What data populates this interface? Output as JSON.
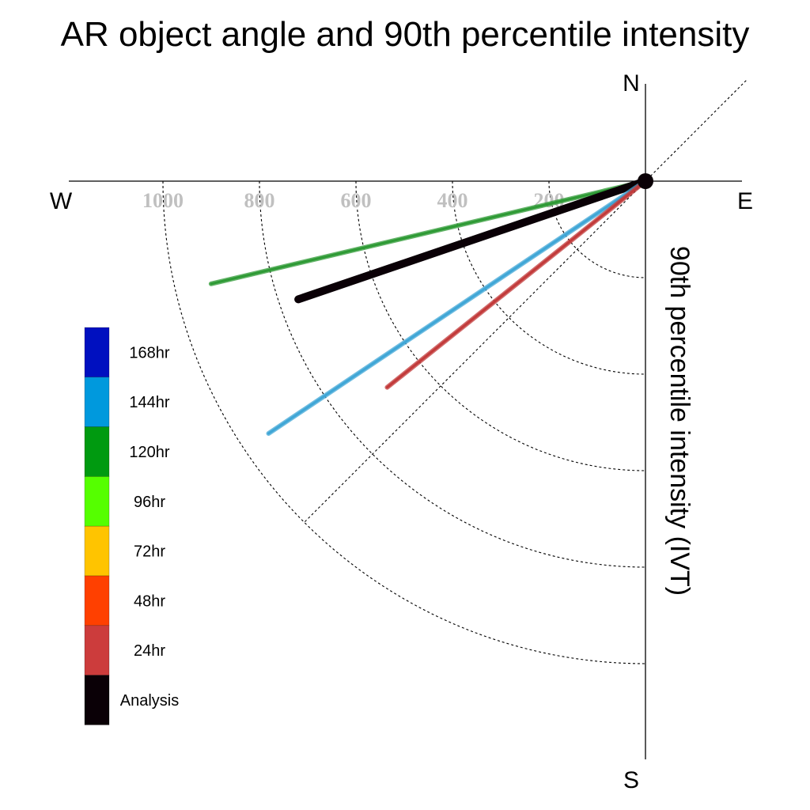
{
  "chart_data": {
    "type": "polar-vector",
    "title": "AR object angle and 90th percentile intensity",
    "ylabel": "90th percentile intensity (IVT)",
    "compass": {
      "north": "N",
      "south": "S",
      "east": "E",
      "west": "W"
    },
    "radial_ticks": [
      200,
      400,
      600,
      800,
      1000
    ],
    "rlim": [
      0,
      1200
    ],
    "guide_angles_deg": [
      45
    ],
    "legend_placement": "left",
    "legend": [
      {
        "label": "168hr",
        "color": "#0010c0"
      },
      {
        "label": "144hr",
        "color": "#0099dd"
      },
      {
        "label": "120hr",
        "color": "#009a10"
      },
      {
        "label": "96hr",
        "color": "#55ff00"
      },
      {
        "label": "72hr",
        "color": "#ffc400"
      },
      {
        "label": "48hr",
        "color": "#ff4000"
      },
      {
        "label": "24hr",
        "color": "#cc3c3c"
      },
      {
        "label": "Analysis",
        "color": "#0a0006"
      }
    ],
    "series": [
      {
        "name": "120hr",
        "color": "#2e9a35",
        "angle_deg": 193.3,
        "intensity": 925
      },
      {
        "name": "Analysis",
        "color": "#0a0006",
        "angle_deg": 198.8,
        "intensity": 760
      },
      {
        "name": "144hr",
        "color": "#3fa6d6",
        "angle_deg": 213.8,
        "intensity": 940
      },
      {
        "name": "24hr",
        "color": "#c23a3a",
        "angle_deg": 218.6,
        "intensity": 685
      }
    ]
  }
}
